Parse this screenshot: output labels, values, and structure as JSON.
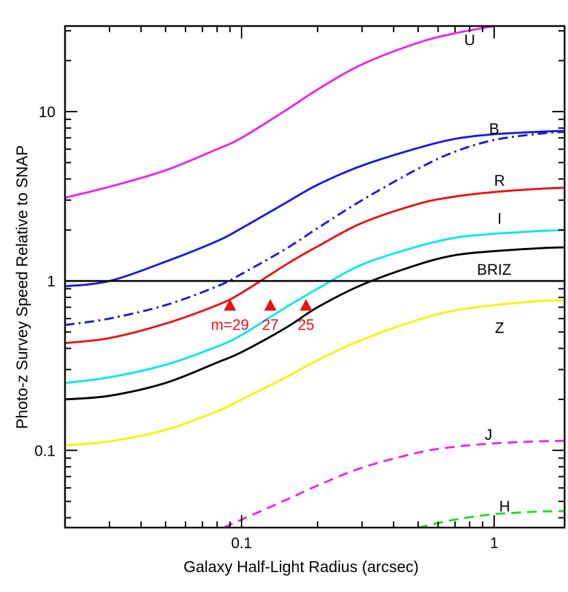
{
  "chart_data": {
    "type": "line",
    "xlabel": "Galaxy Half-Light Radius (arcsec)",
    "ylabel": "Photo-z Survey Speed Relative to SNAP",
    "x_scale": "log",
    "y_scale": "log",
    "xlim": [
      0.02,
      1.9
    ],
    "ylim": [
      0.035,
      32
    ],
    "x_ticks": [
      {
        "value": 0.1,
        "label": "0.1"
      },
      {
        "value": 1,
        "label": "1"
      }
    ],
    "y_ticks": [
      {
        "value": 0.1,
        "label": "0.1"
      },
      {
        "value": 1,
        "label": "1"
      },
      {
        "value": 10,
        "label": "10"
      }
    ],
    "grid": false,
    "reference_line": {
      "y": 1,
      "color": "#000000"
    },
    "series": [
      {
        "name": "U",
        "color": "#ee22ee",
        "dash": "solid",
        "label_at": [
          0.8,
          26
        ],
        "x": [
          0.02,
          0.03,
          0.05,
          0.08,
          0.1,
          0.15,
          0.2,
          0.3,
          0.5,
          0.7,
          1.0
        ],
        "y": [
          3.1,
          3.6,
          4.5,
          6.0,
          7.0,
          10.2,
          13.5,
          19.0,
          25.5,
          29.0,
          32.0
        ]
      },
      {
        "name": "B",
        "color": "#1a1ae0",
        "dash": "solid",
        "label_at": [
          1.0,
          7.8
        ],
        "x": [
          0.02,
          0.03,
          0.05,
          0.08,
          0.1,
          0.15,
          0.2,
          0.3,
          0.5,
          0.7,
          1.0,
          1.5,
          1.9
        ],
        "y": [
          0.93,
          1.0,
          1.3,
          1.72,
          2.05,
          2.9,
          3.7,
          4.8,
          6.1,
          6.9,
          7.35,
          7.6,
          7.7
        ]
      },
      {
        "name": "",
        "color": "#1a1ae0",
        "dash": "dashdot",
        "label_at": null,
        "x": [
          0.02,
          0.03,
          0.05,
          0.08,
          0.1,
          0.15,
          0.2,
          0.3,
          0.5,
          0.7,
          1.0,
          1.5,
          1.9
        ],
        "y": [
          0.55,
          0.6,
          0.72,
          0.93,
          1.1,
          1.55,
          2.05,
          3.0,
          4.6,
          5.8,
          6.8,
          7.4,
          7.6
        ]
      },
      {
        "name": "R",
        "color": "#ee1111",
        "dash": "solid",
        "label_at": [
          1.05,
          3.85
        ],
        "x": [
          0.02,
          0.03,
          0.05,
          0.08,
          0.1,
          0.15,
          0.2,
          0.3,
          0.5,
          0.7,
          1.0,
          1.5,
          1.9
        ],
        "y": [
          0.43,
          0.46,
          0.56,
          0.72,
          0.85,
          1.25,
          1.6,
          2.2,
          2.85,
          3.15,
          3.35,
          3.5,
          3.55
        ]
      },
      {
        "name": "I",
        "color": "#00e8f0",
        "dash": "solid",
        "label_at": [
          1.05,
          2.3
        ],
        "x": [
          0.02,
          0.03,
          0.05,
          0.08,
          0.1,
          0.15,
          0.2,
          0.3,
          0.5,
          0.7,
          1.0,
          1.5,
          1.9
        ],
        "y": [
          0.25,
          0.27,
          0.32,
          0.41,
          0.48,
          0.7,
          0.9,
          1.25,
          1.6,
          1.8,
          1.9,
          1.97,
          2.0
        ]
      },
      {
        "name": "BRIZ",
        "color": "#000000",
        "dash": "solid",
        "label_at": [
          1.0,
          1.15
        ],
        "x": [
          0.02,
          0.03,
          0.05,
          0.08,
          0.1,
          0.15,
          0.2,
          0.3,
          0.5,
          0.7,
          1.0,
          1.5,
          1.9
        ],
        "y": [
          0.2,
          0.21,
          0.25,
          0.33,
          0.38,
          0.53,
          0.7,
          0.95,
          1.25,
          1.42,
          1.5,
          1.56,
          1.58
        ]
      },
      {
        "name": "Z",
        "color": "#f5f500",
        "dash": "solid",
        "label_at": [
          1.05,
          0.52
        ],
        "x": [
          0.02,
          0.03,
          0.05,
          0.08,
          0.1,
          0.15,
          0.2,
          0.3,
          0.5,
          0.7,
          1.0,
          1.5,
          1.9
        ],
        "y": [
          0.107,
          0.113,
          0.132,
          0.17,
          0.2,
          0.27,
          0.34,
          0.45,
          0.59,
          0.67,
          0.72,
          0.76,
          0.77
        ]
      },
      {
        "name": "J",
        "color": "#ee22ee",
        "dash": "dashed",
        "label_at": [
          0.95,
          0.122
        ],
        "x": [
          0.085,
          0.1,
          0.15,
          0.2,
          0.3,
          0.5,
          0.7,
          1.0,
          1.5,
          1.9
        ],
        "y": [
          0.035,
          0.039,
          0.051,
          0.062,
          0.079,
          0.097,
          0.105,
          0.11,
          0.113,
          0.114
        ]
      },
      {
        "name": "H",
        "color": "#22dd22",
        "dash": "dashed",
        "label_at": [
          1.1,
          0.046
        ],
        "x": [
          0.5,
          0.7,
          1.0,
          1.5,
          1.9
        ],
        "y": [
          0.035,
          0.039,
          0.042,
          0.0435,
          0.0438
        ]
      }
    ],
    "markers": [
      {
        "x": 0.09,
        "y": 0.72,
        "label": "m=29",
        "color": "#ee1111"
      },
      {
        "x": 0.13,
        "y": 0.72,
        "label": "27",
        "color": "#ee1111"
      },
      {
        "x": 0.18,
        "y": 0.72,
        "label": "25",
        "color": "#ee1111"
      }
    ]
  }
}
